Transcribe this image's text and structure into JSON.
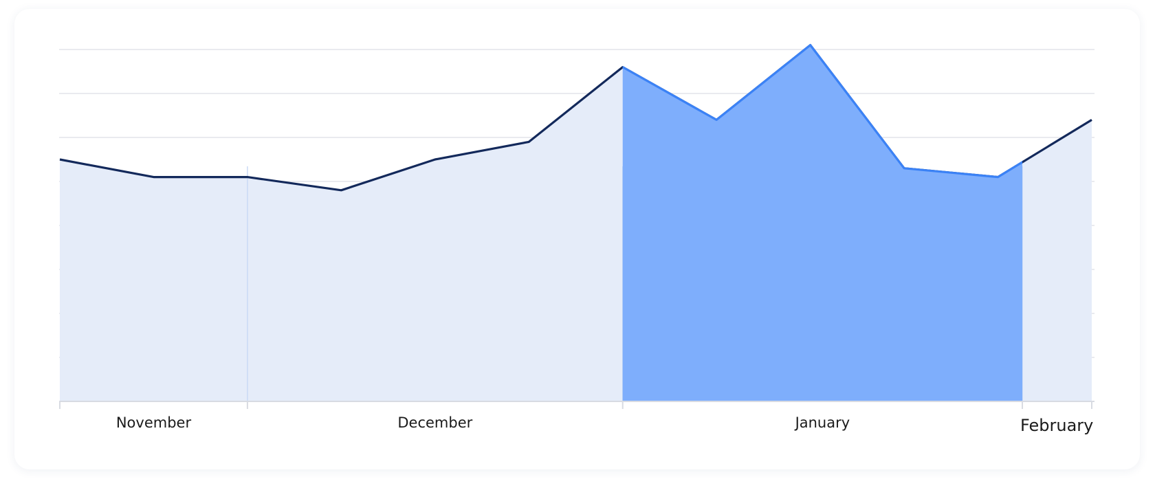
{
  "chart_data": {
    "type": "area",
    "categories": [
      null,
      null,
      null,
      null,
      null,
      null,
      null,
      null,
      null,
      null,
      null,
      null
    ],
    "values": [
      5.5,
      5.1,
      5.1,
      4.8,
      5.5,
      5.9,
      7.6,
      6.4,
      8.1,
      5.3,
      5.1,
      6.4
    ],
    "ylim": [
      0,
      8
    ],
    "yticks": [
      0,
      1,
      2,
      3,
      4,
      5,
      6,
      7,
      8
    ],
    "grid": true,
    "line_color": "#13295b",
    "fill_color": "#e5ecf9",
    "highlight": {
      "from": 6,
      "to": 10.26,
      "line_color": "#3b82f6",
      "fill_color": "#7eaefc"
    },
    "months": [
      {
        "label": "November",
        "from": 0,
        "to": 2
      },
      {
        "label": "December",
        "from": 2,
        "to": 6
      },
      {
        "label": "January",
        "from": 6,
        "to": 10.26
      },
      {
        "label": "February",
        "from": 10.26,
        "to": 11
      }
    ]
  }
}
